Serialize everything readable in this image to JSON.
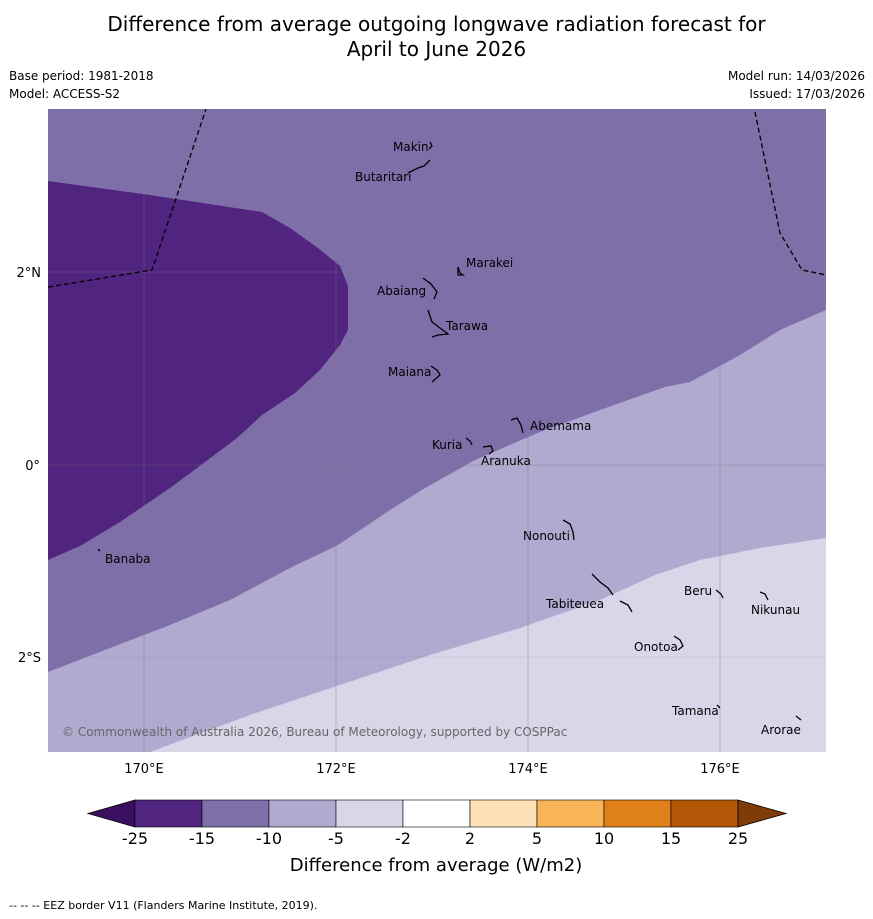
{
  "title_line1": "Difference from average outgoing longwave radiation forecast for",
  "title_line2": "April to June 2026",
  "meta_left": {
    "base_period": "Base period: 1981-2018",
    "model": "Model: ACCESS-S2"
  },
  "meta_right": {
    "model_run": "Model run: 14/03/2026",
    "issued": "Issued: 17/03/2026"
  },
  "map": {
    "lat_labels": [
      "2°N",
      "0°",
      "2°S"
    ],
    "lon_labels": [
      "170°E",
      "172°E",
      "174°E",
      "176°E"
    ],
    "places": [
      {
        "name": "Makin"
      },
      {
        "name": "Butaritari"
      },
      {
        "name": "Marakei"
      },
      {
        "name": "Abaiang"
      },
      {
        "name": "Tarawa"
      },
      {
        "name": "Maiana"
      },
      {
        "name": "Abemama"
      },
      {
        "name": "Kuria"
      },
      {
        "name": "Aranuka"
      },
      {
        "name": "Nonouti"
      },
      {
        "name": "Banaba"
      },
      {
        "name": "Tabiteuea"
      },
      {
        "name": "Beru"
      },
      {
        "name": "Nikunau"
      },
      {
        "name": "Onotoa"
      },
      {
        "name": "Tamana"
      },
      {
        "name": "Arorae"
      }
    ],
    "copyright": "© Commonwealth of Australia 2026, Bureau of Meteorology, supported by COSPPac",
    "colors": {
      "band_lt_-15": "#51247f",
      "band_-15_-10": "#7f6fa9",
      "band_-10_-5": "#b0a9d0",
      "band_-5_-2": "#d8d7e9"
    }
  },
  "colorbar": {
    "ticks": [
      "-25",
      "-15",
      "-10",
      "-5",
      "-2",
      "2",
      "5",
      "10",
      "15",
      "25"
    ],
    "colors": [
      "#3b0f60",
      "#51247f",
      "#7f6fa9",
      "#b0a9d0",
      "#d8d7e9",
      "#ffffff",
      "#fee0b6",
      "#f9b45a",
      "#e0801a",
      "#b35605",
      "#7f3b08"
    ],
    "label": "Difference from average (W/m2)"
  },
  "footnote": "-- -- -- EEZ border V11 (Flanders Marine Institute, 2019)."
}
